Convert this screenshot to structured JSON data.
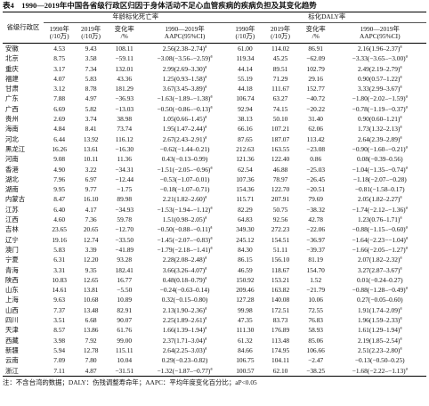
{
  "table": {
    "title": "表4　1990—2019年中国各省级行政区归因于身体活动不足心血管疾病的疾病负担及其变化趋势",
    "row_header": "省级行政区",
    "groups": [
      "年龄标化死亡率",
      "标化DALY率"
    ],
    "columns": [
      [
        "1990年",
        "(/10万)"
      ],
      [
        "2019年",
        "(/10万)"
      ],
      [
        "变化率",
        "/%"
      ],
      [
        "1990—2019年",
        "AAPC(95%CI)"
      ]
    ],
    "rows": [
      [
        "安徽",
        "4.53",
        "9.43",
        "108.11",
        {
          "text": "2.56(2.38–2.74)",
          "sup": "a"
        },
        "61.00",
        "114.02",
        "86.91",
        {
          "text": "2.16(1.96–2.37)",
          "sup": "a"
        }
      ],
      [
        "北京",
        "8.75",
        "3.58",
        "−59.11",
        {
          "text": "−3.08(−3.56–−2.59)",
          "sup": "a"
        },
        "119.34",
        "45.25",
        "−62.09",
        {
          "text": "−3.33(−3.65–−3.00)",
          "sup": "a"
        }
      ],
      [
        "重庆",
        "3.17",
        "7.34",
        "132.01",
        {
          "text": "2.99(2.69–3.30)",
          "sup": "a"
        },
        "44.14",
        "89.51",
        "102.79",
        {
          "text": "2.49(2.19–2.79)",
          "sup": "a"
        }
      ],
      [
        "福建",
        "4.07",
        "5.83",
        "43.36",
        {
          "text": "1.25(0.93–1.58)",
          "sup": "a"
        },
        "55.19",
        "71.29",
        "29.16",
        {
          "text": "0.90(0.57–1.22)",
          "sup": "a"
        }
      ],
      [
        "甘肃",
        "3.12",
        "8.78",
        "181.29",
        {
          "text": "3.67(3.45–3.89)",
          "sup": "a"
        },
        "44.18",
        "111.67",
        "152.77",
        {
          "text": "3.33(2.99–3.67)",
          "sup": "a"
        }
      ],
      [
        "广东",
        "7.88",
        "4.97",
        "−36.93",
        {
          "text": "−1.63(−1.89–−1.38)",
          "sup": "a"
        },
        "106.74",
        "63.27",
        "−40.72",
        {
          "text": "−1.80(−2.02–−1.59)",
          "sup": "a"
        }
      ],
      [
        "广西",
        "6.69",
        "5.82",
        "−13.03",
        {
          "text": "−0.50(−0.86–−0.13)",
          "sup": "a"
        },
        "92.94",
        "74.15",
        "−20.22",
        {
          "text": "−0.78(−1.19–−0.37)",
          "sup": "a"
        }
      ],
      [
        "贵州",
        "2.69",
        "3.74",
        "38.98",
        {
          "text": "1.05(0.66–1.45)",
          "sup": "a"
        },
        "38.13",
        "50.10",
        "31.40",
        {
          "text": "0.90(0.60–1.21)",
          "sup": "a"
        }
      ],
      [
        "海南",
        "4.84",
        "8.41",
        "73.74",
        {
          "text": "1.95(1.47–2.44)",
          "sup": "a"
        },
        "66.16",
        "107.21",
        "62.06",
        {
          "text": "1.73(1.32–2.13)",
          "sup": "a"
        }
      ],
      [
        "河北",
        "6.44",
        "13.92",
        "116.12",
        {
          "text": "2.67(2.43–2.91)",
          "sup": "a"
        },
        "87.65",
        "187.07",
        "113.42",
        {
          "text": "2.64(2.39–2.89)",
          "sup": "a"
        }
      ],
      [
        "黑龙江",
        "16.26",
        "13.61",
        "−16.30",
        {
          "text": "−0.62(−1.44–0.21)"
        },
        "212.63",
        "163.55",
        "−23.08",
        {
          "text": "−0.90(−1.60–−0.21)",
          "sup": "a"
        }
      ],
      [
        "河南",
        "9.08",
        "10.11",
        "11.36",
        {
          "text": "0.43(−0.13–0.99)"
        },
        "121.36",
        "122.40",
        "0.86",
        {
          "text": "0.08(−0.39–0.56)"
        }
      ],
      [
        "香港",
        "4.90",
        "3.22",
        "−34.31",
        {
          "text": "−1.51(−2.05–−0.96)",
          "sup": "a"
        },
        "62.54",
        "46.88",
        "−25.03",
        {
          "text": "−1.04(−1.35–−0.74)",
          "sup": "a"
        }
      ],
      [
        "湖北",
        "7.96",
        "6.97",
        "−12.44",
        {
          "text": "−0.53(−1.07–0.01)"
        },
        "107.36",
        "78.97",
        "−26.45",
        {
          "text": "−1.18(−2.07–−0.28)"
        }
      ],
      [
        "湖南",
        "9.95",
        "9.77",
        "−1.75",
        {
          "text": "−0.18(−1.07–0.71)"
        },
        "154.36",
        "122.70",
        "−20.51",
        {
          "text": "−0.81(−1.58–0.17)"
        }
      ],
      [
        "内蒙古",
        "8.47",
        "16.10",
        "89.98",
        {
          "text": "2.21(1.82–2.60)",
          "sup": "a"
        },
        "115.71",
        "207.91",
        "79.69",
        {
          "text": "2.05(1.82–2.27)",
          "sup": "a"
        }
      ],
      [
        "江苏",
        "6.40",
        "4.17",
        "−34.93",
        {
          "text": "−1.53(−1.94–−1.12)",
          "sup": "a"
        },
        "82.29",
        "50.75",
        "−38.32",
        {
          "text": "−1.74(−2.12–−1.36)",
          "sup": "a"
        }
      ],
      [
        "江西",
        "4.60",
        "7.36",
        "59.78",
        {
          "text": "1.51(0.98–2.05)",
          "sup": "a"
        },
        "64.83",
        "92.56",
        "42.78",
        {
          "text": "1.23(0.76–1.71)",
          "sup": "a"
        }
      ],
      [
        "吉林",
        "23.65",
        "20.65",
        "−12.70",
        {
          "text": "−0.50(−0.88–−0.11)",
          "sup": "a"
        },
        "349.30",
        "272.23",
        "−22.06",
        {
          "text": "−0.88(−1.15–−0.60)",
          "sup": "a"
        }
      ],
      [
        "辽宁",
        "19.16",
        "12.74",
        "−33.50",
        {
          "text": "−1.45(−2.07–−0.83)",
          "sup": "a"
        },
        "245.12",
        "154.51",
        "−36.97",
        {
          "text": "−1.64(−2.23−−1.04)",
          "sup": "a"
        }
      ],
      [
        "澳门",
        "5.83",
        "3.39",
        "−41.89",
        {
          "text": "−1.79(−2.18–−1.41)",
          "sup": "a"
        },
        "84.30",
        "51.11",
        "−39.37",
        {
          "text": "−1.66(−2.05–−1.27)",
          "sup": "a"
        }
      ],
      [
        "宁夏",
        "6.31",
        "12.20",
        "93.28",
        {
          "text": "2.28(2.08–2.48)",
          "sup": "a"
        },
        "86.15",
        "156.10",
        "81.19",
        {
          "text": "2.07(1.82–2.32)",
          "sup": "a"
        }
      ],
      [
        "青海",
        "3.31",
        "9.35",
        "182.41",
        {
          "text": "3.66(3.26–4.07)",
          "sup": "a"
        },
        "46.59",
        "118.67",
        "154.70",
        {
          "text": "3.27(2.87–3.67)",
          "sup": "a"
        }
      ],
      [
        "陕西",
        "10.83",
        "12.65",
        "16.77",
        {
          "text": "0.48(0.18–0.79)",
          "sup": "a"
        },
        "150.92",
        "153.21",
        "1.52",
        {
          "text": "0.01(−0.24–0.27)"
        }
      ],
      [
        "山东",
        "14.61",
        "13.81",
        "−5.50",
        {
          "text": "−0.24(−0.63–0.14)"
        },
        "209.46",
        "163.82",
        "−21.79",
        {
          "text": "−0.88(−1.28–−0.49)",
          "sup": "a"
        }
      ],
      [
        "上海",
        "9.63",
        "10.68",
        "10.89",
        {
          "text": "0.32(−0.15–0.80)"
        },
        "127.28",
        "140.08",
        "10.06",
        {
          "text": "0.27(−0.05–0.60)"
        }
      ],
      [
        "山西",
        "7.37",
        "13.48",
        "82.91",
        {
          "text": "2.13(1.90–2.36)",
          "sup": "a"
        },
        "99.98",
        "172.51",
        "72.55",
        {
          "text": "1.91(1.74–2.09)",
          "sup": "a"
        }
      ],
      [
        "四川",
        "3.51",
        "6.68",
        "90.07",
        {
          "text": "2.25(1.89–2.61)",
          "sup": "a"
        },
        "47.35",
        "83.73",
        "76.83",
        {
          "text": "1.96(1.59–2.33)",
          "sup": "a"
        }
      ],
      [
        "天津",
        "8.57",
        "13.86",
        "61.76",
        {
          "text": "1.66(1.39–1.94)",
          "sup": "a"
        },
        "111.30",
        "176.89",
        "58.93",
        {
          "text": "1.61(1.29–1.94)",
          "sup": "a"
        }
      ],
      [
        "西藏",
        "3.98",
        "7.92",
        "99.00",
        {
          "text": "2.37(1.71–3.04)",
          "sup": "a"
        },
        "61.32",
        "113.48",
        "85.06",
        {
          "text": "2.19(1.85–2.54)",
          "sup": "a"
        }
      ],
      [
        "新疆",
        "5.94",
        "12.78",
        "115.11",
        {
          "text": "2.64(2.25–3.03)",
          "sup": "a"
        },
        "84.66",
        "174.95",
        "106.66",
        {
          "text": "2.51(2.23–2.80)",
          "sup": "a"
        }
      ],
      [
        "云南",
        "7.09",
        "7.80",
        "10.04",
        {
          "text": "0.29(−0.23–0.82)"
        },
        "106.75",
        "104.11",
        "−2.47",
        {
          "text": "−0.13(−0.50–0.25)"
        }
      ],
      [
        "浙江",
        "7.11",
        "4.87",
        "−31.51",
        {
          "text": "−1.32(−1.87–−0.77)",
          "sup": "a"
        },
        "100.57",
        "62.10",
        "−38.25",
        {
          "text": "−1.68(−2.22–−1.13)",
          "sup": "a"
        }
      ]
    ],
    "note": "注：不含台湾的数据；DALY：伤残调整寿命年；AAPC：平均年度变化百分比；aP<0.05"
  }
}
